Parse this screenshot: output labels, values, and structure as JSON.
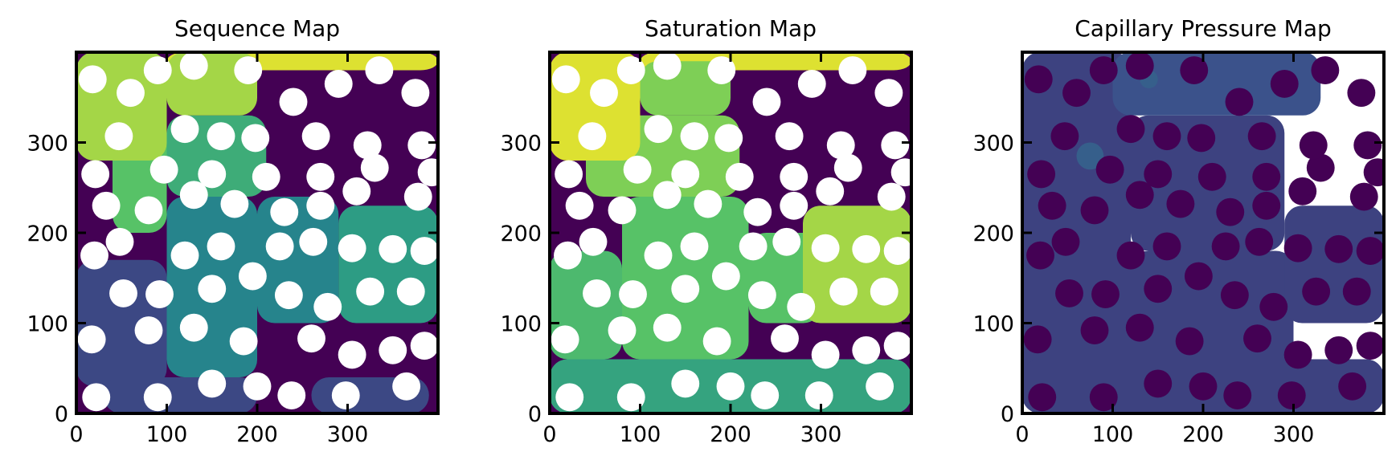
{
  "chart_data": [
    {
      "type": "heatmap",
      "title": "Sequence Map",
      "xlabel": "",
      "ylabel": "",
      "xlim": [
        0,
        400
      ],
      "ylim": [
        0,
        400
      ],
      "xticks": [
        0,
        100,
        200,
        300
      ],
      "yticks": [
        0,
        100,
        200,
        300
      ],
      "colormap": "viridis",
      "mask_color": "#ffffff",
      "grid": false,
      "regions": [
        {
          "level": 0.0,
          "region": "background"
        },
        {
          "level": 0.22,
          "region": "lower-left / bottom band"
        },
        {
          "level": 0.45,
          "region": "center column / middle band"
        },
        {
          "level": 0.55,
          "region": "right-middle"
        },
        {
          "level": 0.62,
          "region": "upper-center"
        },
        {
          "level": 0.72,
          "region": "left strip"
        },
        {
          "level": 0.86,
          "region": "top-left"
        },
        {
          "level": 0.95,
          "region": "top band"
        }
      ]
    },
    {
      "type": "heatmap",
      "title": "Saturation Map",
      "xlabel": "",
      "ylabel": "",
      "xlim": [
        0,
        400
      ],
      "ylim": [
        0,
        400
      ],
      "xticks": [
        0,
        100,
        200,
        300
      ],
      "yticks": [
        0,
        100,
        200,
        300
      ],
      "colormap": "viridis",
      "mask_color": "#ffffff",
      "grid": false,
      "regions": [
        {
          "level": 0.0,
          "region": "background"
        },
        {
          "level": 0.58,
          "region": "bottom band"
        },
        {
          "level": 0.68,
          "region": "lower-left"
        },
        {
          "level": 0.72,
          "region": "middle band"
        },
        {
          "level": 0.8,
          "region": "upper-middle"
        },
        {
          "level": 0.86,
          "region": "right-middle"
        },
        {
          "level": 0.95,
          "region": "top band"
        }
      ]
    },
    {
      "type": "heatmap",
      "title": "Capillary Pressure Map",
      "xlabel": "",
      "ylabel": "",
      "xlim": [
        0,
        400
      ],
      "ylim": [
        0,
        400
      ],
      "xticks": [
        0,
        100,
        200,
        300
      ],
      "yticks": [
        0,
        100,
        200,
        300
      ],
      "colormap": "viridis",
      "mask_color": "#ffffff",
      "grain_color": "#440154",
      "grid": false,
      "regions": [
        {
          "level": 0.2,
          "region": "invaded pore space (low pressure)"
        },
        {
          "level": 0.25,
          "region": "upper-left patches"
        },
        {
          "level": 0.3,
          "region": "scattered bright spots"
        }
      ]
    }
  ]
}
